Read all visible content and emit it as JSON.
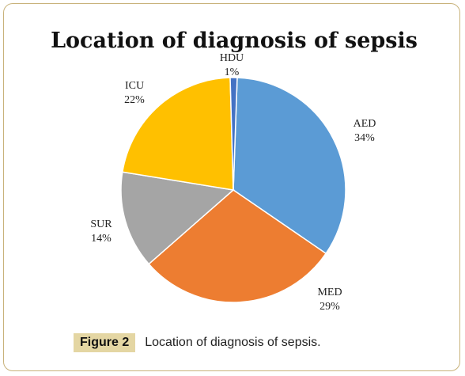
{
  "chart_data": {
    "type": "pie",
    "title": "Location of diagnosis of sepsis",
    "slices": [
      {
        "label": "AED",
        "value": 34,
        "display": "34%",
        "color": "#5b9bd5"
      },
      {
        "label": "MED",
        "value": 29,
        "display": "29%",
        "color": "#ed7d31"
      },
      {
        "label": "SUR",
        "value": 14,
        "display": "14%",
        "color": "#a5a5a5"
      },
      {
        "label": "ICU",
        "value": 22,
        "display": "22%",
        "color": "#ffc000"
      },
      {
        "label": "HDU",
        "value": 1,
        "display": "1%",
        "color": "#4472c4"
      }
    ],
    "legend": "none",
    "data_labels": "outside"
  },
  "caption": {
    "tag": "Figure 2",
    "text": "Location of diagnosis of sepsis."
  }
}
